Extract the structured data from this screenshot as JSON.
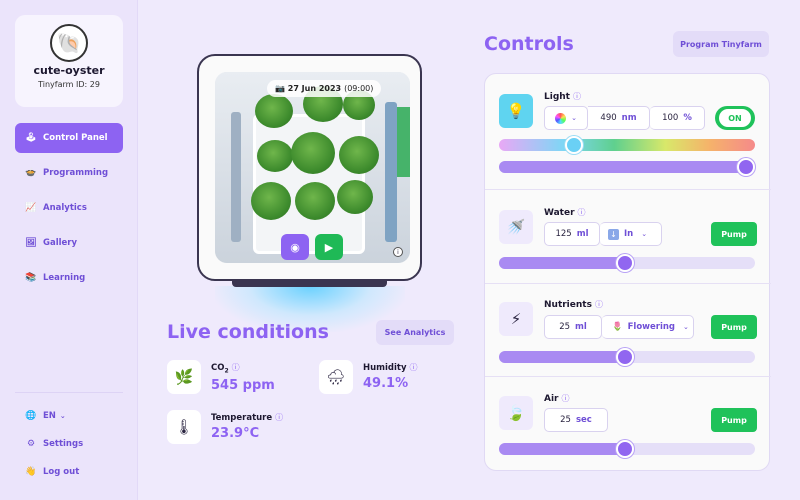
{
  "profile": {
    "name": "cute-oyster",
    "id_label": "Tinyfarm ID: 29"
  },
  "nav": [
    {
      "label": "Control Panel",
      "icon": "joystick-icon",
      "active": true
    },
    {
      "label": "Programming",
      "icon": "pot-icon"
    },
    {
      "label": "Analytics",
      "icon": "chart-icon"
    },
    {
      "label": "Gallery",
      "icon": "picture-icon"
    },
    {
      "label": "Learning",
      "icon": "books-icon"
    }
  ],
  "bottom_nav": {
    "language": "EN",
    "settings": "Settings",
    "logout": "Log out"
  },
  "camera": {
    "date": "27 Jun 2023",
    "time": "(09:00)"
  },
  "live": {
    "title": "Live conditions",
    "see_analytics": "See Analytics",
    "co2": {
      "label_main": "CO",
      "label_sub": "2",
      "value": "545 ppm"
    },
    "humidity": {
      "label": "Humidity",
      "value": "49.1%"
    },
    "temperature": {
      "label": "Temperature",
      "value": "23.9°C"
    }
  },
  "controls": {
    "title": "Controls",
    "program_button": "Program Tinyfarm",
    "light": {
      "label": "Light",
      "wavelength": "490",
      "wavelength_unit": "nm",
      "intensity": "100",
      "intensity_unit": "%",
      "toggle": "ON",
      "intensity_level": 1.0
    },
    "water": {
      "label": "Water",
      "amount": "125",
      "unit": "ml",
      "direction": "In",
      "pump": "Pump",
      "level": 0.49
    },
    "nutrients": {
      "label": "Nutrients",
      "amount": "25",
      "unit": "ml",
      "mode": "Flowering",
      "pump": "Pump",
      "level": 0.49
    },
    "air": {
      "label": "Air",
      "amount": "25",
      "unit": "sec",
      "pump": "Pump",
      "level": 0.49
    }
  },
  "colors": {
    "accent": "#8d63f2",
    "pump": "#1fc25a",
    "background": "#efeafc"
  }
}
